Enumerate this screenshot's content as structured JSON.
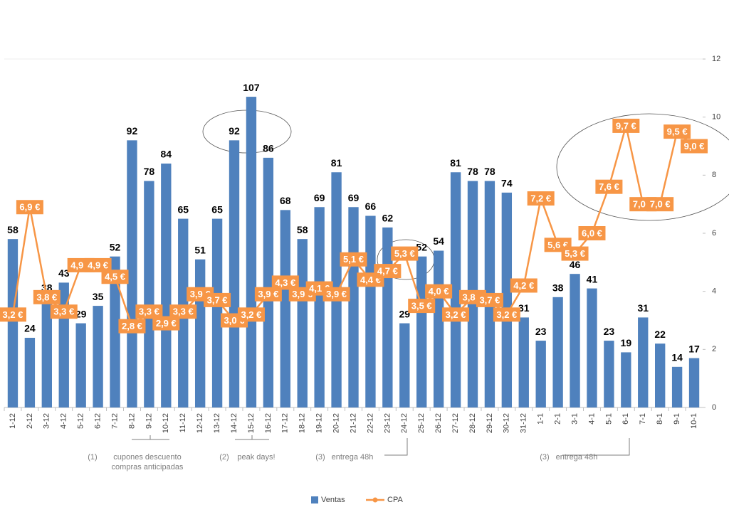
{
  "chart_data": {
    "type": "bar",
    "categories": [
      "1-12",
      "2-12",
      "3-12",
      "4-12",
      "5-12",
      "6-12",
      "7-12",
      "8-12",
      "9-12",
      "10-12",
      "11-12",
      "12-12",
      "13-12",
      "14-12",
      "15-12",
      "16-12",
      "17-12",
      "18-12",
      "19-12",
      "20-12",
      "21-12",
      "22-12",
      "23-12",
      "24-12",
      "25-12",
      "26-12",
      "27-12",
      "28-12",
      "29-12",
      "30-12",
      "31-12",
      "1-1",
      "2-1",
      "3-1",
      "4-1",
      "5-1",
      "6-1",
      "7-1",
      "8-1",
      "9-1",
      "10-1"
    ],
    "series": [
      {
        "name": "Ventas",
        "type": "bar",
        "color": "#4f81bd",
        "values": [
          58,
          24,
          38,
          43,
          29,
          35,
          52,
          92,
          78,
          84,
          65,
          51,
          65,
          92,
          107,
          86,
          68,
          58,
          69,
          81,
          69,
          66,
          62,
          29,
          52,
          54,
          81,
          78,
          78,
          74,
          31,
          23,
          38,
          46,
          41,
          23,
          19,
          31,
          22,
          14,
          17
        ]
      },
      {
        "name": "CPA",
        "type": "line",
        "axis": "y2",
        "color": "#f79646",
        "values": [
          3.2,
          6.9,
          3.8,
          3.3,
          4.9,
          4.9,
          4.5,
          2.8,
          3.3,
          2.9,
          3.3,
          3.9,
          3.7,
          3.0,
          3.2,
          3.9,
          4.3,
          3.9,
          4.1,
          3.9,
          5.1,
          4.4,
          4.7,
          5.3,
          3.5,
          4.0,
          3.2,
          3.8,
          3.7,
          3.2,
          4.2,
          7.2,
          5.6,
          5.3,
          6.0,
          7.6,
          9.7,
          7.0,
          7.0,
          9.5,
          9.0
        ],
        "value_labels": [
          "3,2 €",
          "6,9 €",
          "3,8 €",
          "3,3 €",
          "4,9 €",
          "4,9 €",
          "4,5 €",
          "2,8 €",
          "3,3 €",
          "2,9 €",
          "3,3 €",
          "3,9 €",
          "3,7 €",
          "3,0 €",
          "3,2 €",
          "3,9 €",
          "4,3 €",
          "3,9 €",
          "4,1 €",
          "3,9 €",
          "5,1 €",
          "4,4 €",
          "4,7 €",
          "5,3 €",
          "3,5 €",
          "4,0 €",
          "3,2 €",
          "3,8 €",
          "3,7 €",
          "3,2 €",
          "4,2 €",
          "7,2 €",
          "5,6 €",
          "5,3 €",
          "6,0 €",
          "7,6 €",
          "9,7 €",
          "7,0 €",
          "7,0 €",
          "9,5 €",
          "9,0 €"
        ]
      }
    ],
    "ylim": [
      0,
      120
    ],
    "y2lim": [
      0,
      12
    ],
    "y2ticks": [
      0,
      2,
      4,
      6,
      8,
      10,
      12
    ],
    "legend": "bottom",
    "annotations": [
      {
        "marker": "(1)",
        "lines": [
          "cupones descuento",
          "compras anticipadas"
        ]
      },
      {
        "marker": "(2)",
        "lines": [
          "peak days!"
        ]
      },
      {
        "marker": "(3)",
        "lines": [
          "entrega 48h"
        ]
      },
      {
        "marker": "(3)",
        "lines": [
          "entrega 48h"
        ]
      }
    ]
  }
}
